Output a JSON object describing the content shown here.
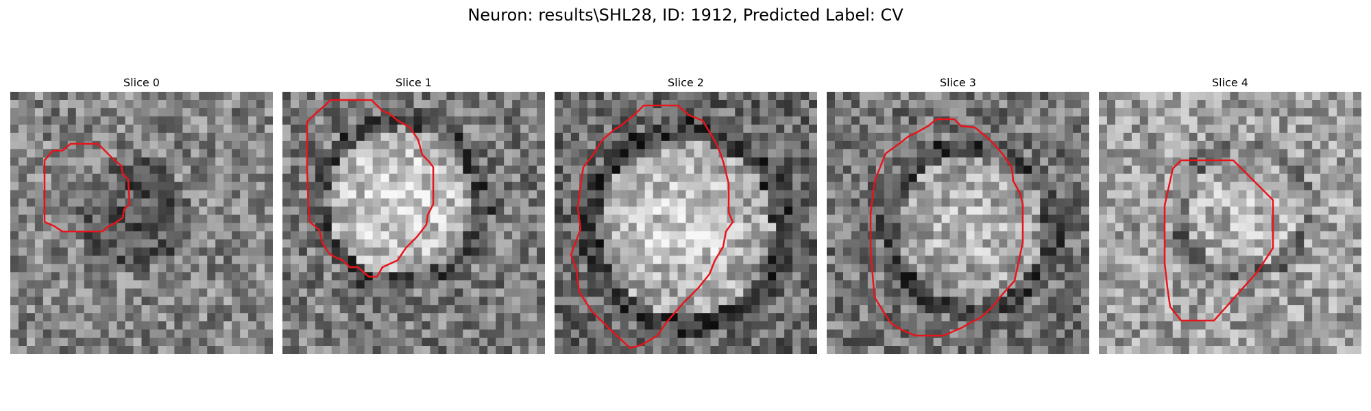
{
  "figure": {
    "title": "Neuron: results\\SHL28, ID: 1912, Predicted Label: CV"
  },
  "colors": {
    "outline": "#e8141b",
    "background": "#ffffff"
  },
  "panels": [
    {
      "title": "Slice 0",
      "base": 0.52,
      "dark": 0.2,
      "center": [
        0.47,
        0.47
      ],
      "radius": 0.21
    },
    {
      "title": "Slice 1",
      "base": 0.48,
      "bright": 0.4,
      "center": [
        0.45,
        0.42
      ],
      "radius": 0.28
    },
    {
      "title": "Slice 2",
      "base": 0.42,
      "bright": 0.42,
      "center": [
        0.5,
        0.52
      ],
      "radius": 0.33
    },
    {
      "title": "Slice 3",
      "base": 0.46,
      "bright": 0.28,
      "center": [
        0.55,
        0.52
      ],
      "radius": 0.28
    },
    {
      "title": "Slice 4",
      "base": 0.62,
      "bright": 0.1,
      "center": [
        0.55,
        0.45
      ],
      "radius": 0.22
    }
  ]
}
